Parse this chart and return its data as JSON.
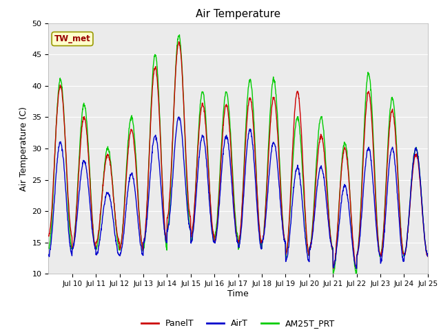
{
  "title": "Air Temperature",
  "ylabel": "Air Temperature (C)",
  "xlabel": "Time",
  "annotation": "TW_met",
  "ylim": [
    10,
    50
  ],
  "yticks": [
    10,
    15,
    20,
    25,
    30,
    35,
    40,
    45,
    50
  ],
  "legend_labels": [
    "PanelT",
    "AirT",
    "AM25T_PRT"
  ],
  "panel_color": "#cc0000",
  "air_color": "#0000cc",
  "am25_color": "#00cc00",
  "background_color": "#ebebeb",
  "fig_background": "#ffffff",
  "start_day": 9.0,
  "end_day": 25.0,
  "xtick_days": [
    10,
    11,
    12,
    13,
    14,
    15,
    16,
    17,
    18,
    19,
    20,
    21,
    22,
    23,
    24,
    25
  ],
  "xtick_labels": [
    "Jul 10",
    "Jul 11",
    "Jul 12",
    "Jul 13",
    "Jul 14",
    "Jul 15",
    "Jul 16",
    "Jul 17",
    "Jul 18",
    "Jul 19",
    "Jul 20",
    "Jul 21",
    "Jul 22",
    "Jul 23",
    "Jul 24",
    "Jul 25"
  ],
  "n_points": 1536,
  "line_width": 1.0,
  "figsize": [
    6.4,
    4.8
  ],
  "dpi": 100
}
